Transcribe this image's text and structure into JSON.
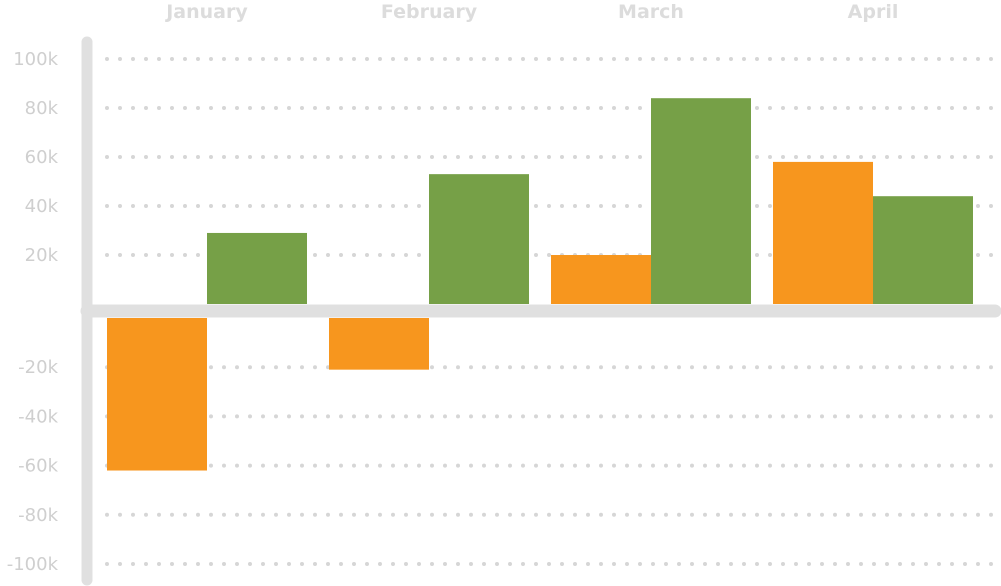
{
  "chart_data": {
    "type": "bar",
    "title": "",
    "xlabel": "",
    "ylabel": "",
    "categories": [
      "January",
      "February",
      "March",
      "April"
    ],
    "series": [
      {
        "values": [
          -62000,
          -21000,
          20000,
          58000
        ],
        "color": "#f7961e"
      },
      {
        "values": [
          29000,
          53000,
          84000,
          44000
        ],
        "color": "#76a047"
      }
    ],
    "ylim": [
      -100000,
      100000
    ],
    "yticks": [
      {
        "value": 100000,
        "label": "100k"
      },
      {
        "value": 80000,
        "label": "80k"
      },
      {
        "value": 60000,
        "label": "60k"
      },
      {
        "value": 40000,
        "label": "40k"
      },
      {
        "value": 20000,
        "label": "20k"
      },
      {
        "value": -20000,
        "label": "-20k"
      },
      {
        "value": -40000,
        "label": "-40k"
      },
      {
        "value": -60000,
        "label": "-60k"
      },
      {
        "value": -80000,
        "label": "-80k"
      },
      {
        "value": -100000,
        "label": "-100k"
      }
    ],
    "grid": true,
    "category_labels_position": "top"
  }
}
